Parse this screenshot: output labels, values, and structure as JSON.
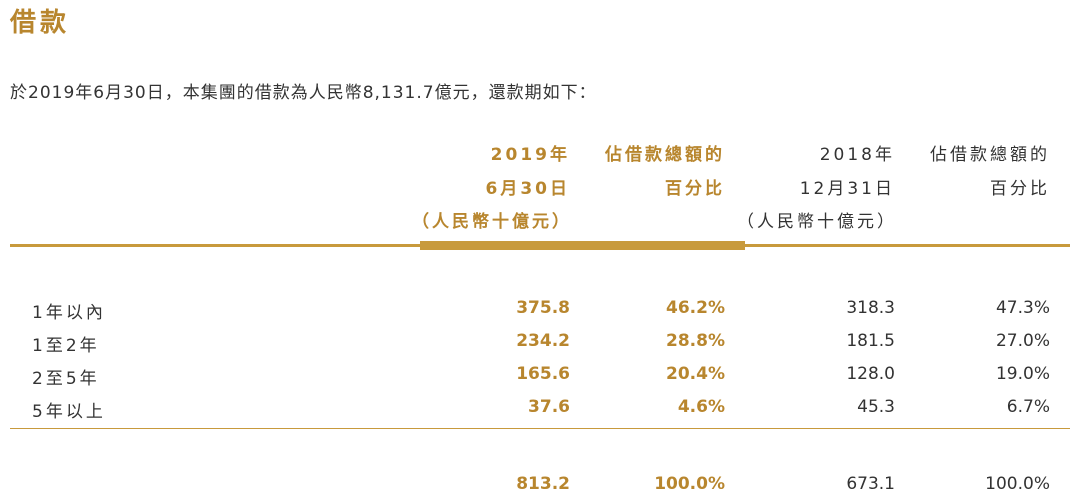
{
  "title": "借款",
  "intro": "於2019年6月30日，本集團的借款為人民幣8,131.7億元，還款期如下：",
  "headers": {
    "col1": [
      "2019年",
      "6月30日",
      "（人民幣十億元）"
    ],
    "col2": [
      "佔借款總額的",
      "百分比"
    ],
    "col3": [
      "2018年",
      "12月31日",
      "（人民幣十億元）"
    ],
    "col4": [
      "佔借款總額的",
      "百分比"
    ]
  },
  "rows": [
    {
      "label": "1年以內",
      "v2019": "375.8",
      "p2019": "46.2%",
      "v2018": "318.3",
      "p2018": "47.3%"
    },
    {
      "label": "1至2年",
      "v2019": "234.2",
      "p2019": "28.8%",
      "v2018": "181.5",
      "p2018": "27.0%"
    },
    {
      "label": "2至5年",
      "v2019": "165.6",
      "p2019": "20.4%",
      "v2018": "128.0",
      "p2018": "19.0%"
    },
    {
      "label": "5年以上",
      "v2019": "37.6",
      "p2019": "4.6%",
      "v2018": "45.3",
      "p2018": "6.7%"
    }
  ],
  "total": {
    "v2019": "813.2",
    "p2019": "100.0%",
    "v2018": "673.1",
    "p2018": "100.0%"
  },
  "colors": {
    "accent": "#b8862e",
    "rule": "#c89a3c",
    "text": "#333333"
  }
}
